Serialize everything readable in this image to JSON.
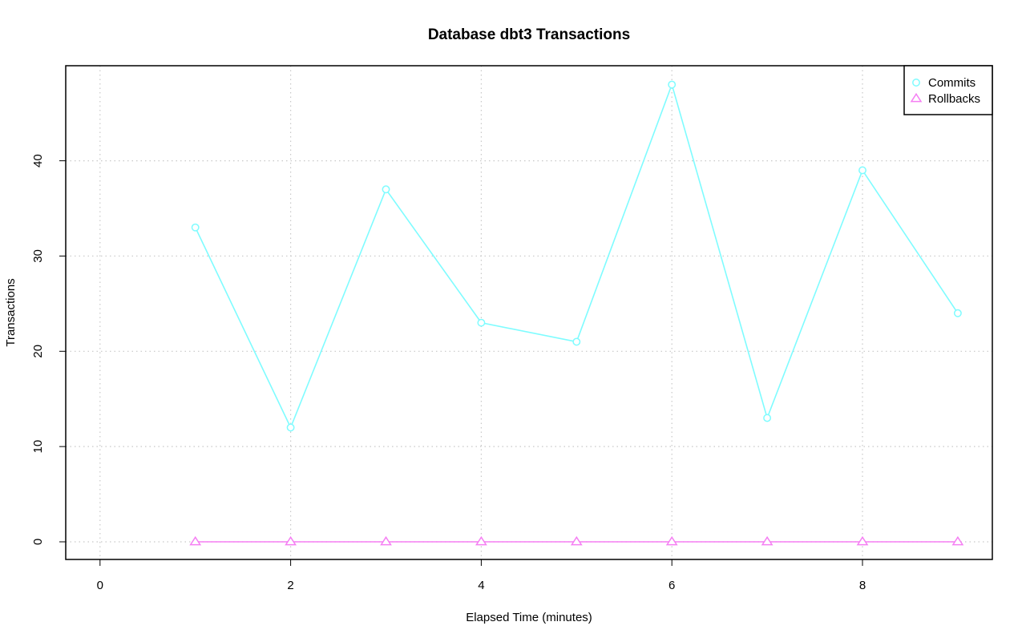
{
  "chart_data": {
    "type": "line",
    "title": "Database dbt3 Transactions",
    "xlabel": "Elapsed Time (minutes)",
    "ylabel": "Transactions",
    "xlim": [
      0,
      9
    ],
    "ylim": [
      0,
      48
    ],
    "x_ticks": [
      0,
      2,
      4,
      6,
      8
    ],
    "y_ticks": [
      0,
      10,
      20,
      30,
      40
    ],
    "grid": true,
    "legend_position": "top-right",
    "x": [
      1,
      2,
      3,
      4,
      5,
      6,
      7,
      8,
      9
    ],
    "series": [
      {
        "name": "Commits",
        "values": [
          33,
          12,
          37,
          23,
          21,
          48,
          13,
          39,
          24
        ],
        "color": "#7ffcff",
        "marker": "circle"
      },
      {
        "name": "Rollbacks",
        "values": [
          0,
          0,
          0,
          0,
          0,
          0,
          0,
          0,
          0
        ],
        "color": "#f57ff3",
        "marker": "triangle"
      }
    ]
  }
}
